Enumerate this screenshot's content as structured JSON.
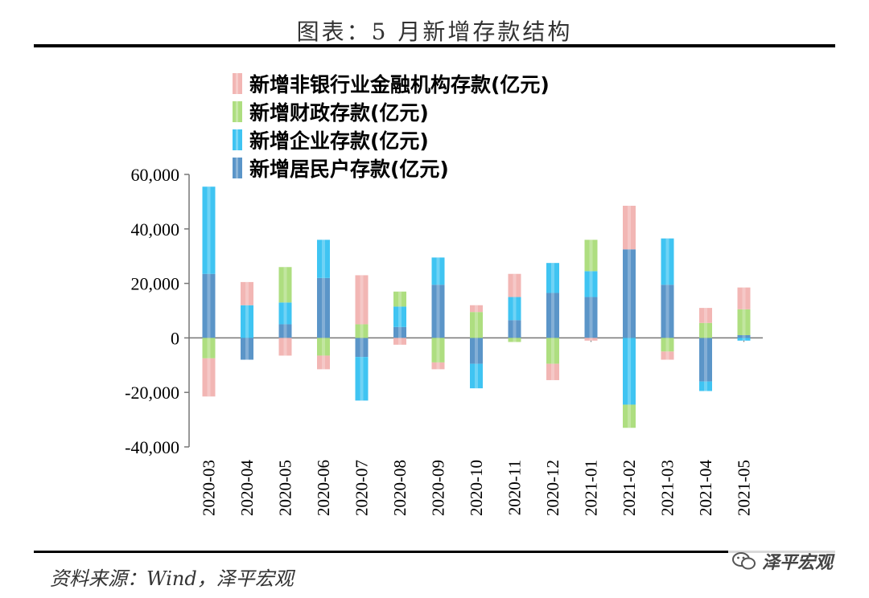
{
  "header": {
    "title": "图表：5 月新增存款结构"
  },
  "footer": {
    "source": "资料来源：Wind，泽平宏观",
    "watermark": "泽平宏观"
  },
  "colors": {
    "nonbank": "#f2b6b4",
    "fiscal": "#aede80",
    "corporate": "#3fc4f2",
    "household": "#5b95c8"
  },
  "chart_data": {
    "type": "bar",
    "stacked": true,
    "categories": [
      "2020-03",
      "2020-04",
      "2020-05",
      "2020-06",
      "2020-07",
      "2020-08",
      "2020-09",
      "2020-10",
      "2020-11",
      "2020-12",
      "2021-01",
      "2021-02",
      "2021-03",
      "2021-04",
      "2021-05"
    ],
    "series": [
      {
        "name": "新增居民户存款(亿元)",
        "key": "household",
        "values": [
          23500,
          -8000,
          5000,
          22000,
          -7000,
          4000,
          19500,
          -9500,
          6500,
          16500,
          15000,
          32500,
          19500,
          -16000,
          1000
        ]
      },
      {
        "name": "新增企业存款(亿元)",
        "key": "corporate",
        "values": [
          32000,
          12000,
          8000,
          14000,
          -16000,
          7500,
          10000,
          -9000,
          8500,
          11000,
          9500,
          -24500,
          17000,
          -3500,
          -1000
        ]
      },
      {
        "name": "新增财政存款(亿元)",
        "key": "fiscal",
        "values": [
          -7500,
          0,
          13000,
          -6500,
          5000,
          5500,
          -9000,
          9500,
          -1500,
          -9500,
          11500,
          -8500,
          -5000,
          5500,
          9500
        ]
      },
      {
        "name": "新增非银行业金融机构存款(亿元)",
        "key": "nonbank",
        "values": [
          -14000,
          8500,
          -6500,
          -5000,
          18000,
          -2500,
          -2500,
          2500,
          8500,
          -6000,
          -1000,
          16000,
          -3000,
          5500,
          8000
        ]
      }
    ],
    "legend_order": [
      "nonbank",
      "fiscal",
      "corporate",
      "household"
    ],
    "legend_labels": {
      "nonbank": "新增非银行业金融机构存款(亿元)",
      "fiscal": "新增财政存款(亿元)",
      "corporate": "新增企业存款(亿元)",
      "household": "新增居民户存款(亿元)"
    },
    "ylim": [
      -40000,
      60000
    ],
    "yticks": [
      60000,
      40000,
      20000,
      0,
      -20000,
      -40000
    ],
    "ytick_labels": [
      "60,000",
      "40,000",
      "20,000",
      "0",
      "-20,000",
      "-40,000"
    ],
    "legend_position": "top-left",
    "grid": false
  }
}
